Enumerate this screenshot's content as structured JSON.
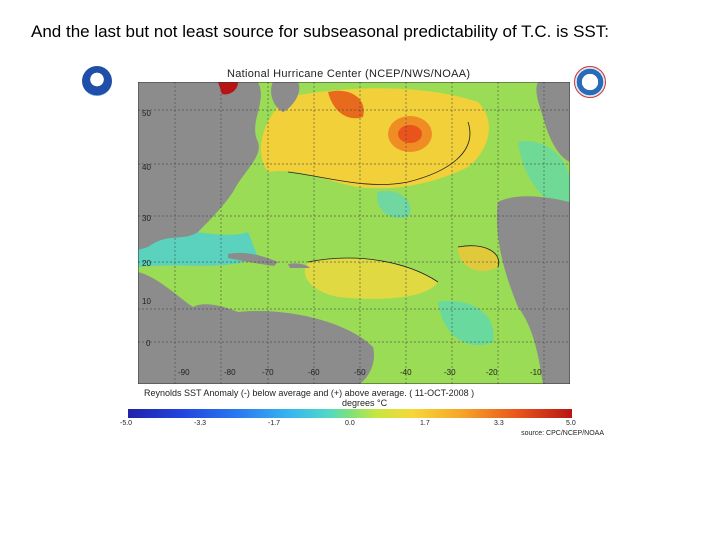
{
  "slide": {
    "title": "And the last but not least source for subseasonal predictability of T.C. is SST:"
  },
  "figure": {
    "map_title": "National Hurricane Center (NCEP/NWS/NOAA)",
    "caption": "Reynolds SST Anomaly (-) below average and (+) above average. ( 11-OCT-2008 )",
    "units": "degrees °C",
    "source": "source: CPC/NCEP/NOAA",
    "lat_labels": [
      "50",
      "40",
      "30",
      "20",
      "10",
      "0"
    ],
    "lon_labels": [
      "-90",
      "-80",
      "-70",
      "-60",
      "-50",
      "-40",
      "-30",
      "-20",
      "-10"
    ],
    "colorbar_labels": [
      "-5.0",
      "-3.3",
      "-1.7",
      "0.0",
      "1.7",
      "3.3",
      "5.0"
    ],
    "colors": {
      "land": "#8c8c8c",
      "ocean_base": "#9adc55",
      "warm": "#f2c230",
      "hot": "#e8541c",
      "cool": "#3cc8d8",
      "grid": "#555555"
    }
  }
}
